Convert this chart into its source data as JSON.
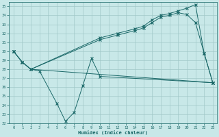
{
  "bg_color": "#c8e8e8",
  "grid_color": "#a0c8c8",
  "line_color": "#1a6868",
  "xlabel": "Humidex (Indice chaleur)",
  "xlim": [
    -0.5,
    23.5
  ],
  "ylim": [
    22,
    35.5
  ],
  "yticks": [
    22,
    23,
    24,
    25,
    26,
    27,
    28,
    29,
    30,
    31,
    32,
    33,
    34,
    35
  ],
  "xticks": [
    0,
    1,
    2,
    3,
    4,
    5,
    6,
    7,
    8,
    9,
    10,
    11,
    12,
    13,
    14,
    15,
    16,
    17,
    18,
    19,
    20,
    21,
    22,
    23
  ],
  "line1_x": [
    0,
    1,
    2,
    10,
    12,
    14,
    15,
    16,
    17,
    18,
    19,
    20,
    21,
    22,
    23
  ],
  "line1_y": [
    30,
    28.8,
    28.0,
    31.5,
    32.0,
    32.5,
    32.8,
    33.5,
    34.0,
    34.2,
    34.5,
    34.8,
    35.2,
    29.8,
    26.5
  ],
  "line2_x": [
    0,
    1,
    2,
    10,
    12,
    14,
    15,
    16,
    17,
    18,
    19,
    20,
    21,
    22,
    23
  ],
  "line2_y": [
    30,
    28.8,
    28.0,
    31.3,
    31.8,
    32.3,
    32.6,
    33.2,
    33.8,
    34.0,
    34.3,
    34.1,
    33.2,
    29.8,
    26.5
  ],
  "line3_x": [
    0,
    1,
    2,
    3,
    5,
    6,
    7,
    8,
    9,
    10,
    23
  ],
  "line3_y": [
    30,
    28.8,
    28.0,
    27.8,
    24.2,
    22.2,
    23.2,
    26.2,
    29.2,
    27.2,
    26.5
  ],
  "line4_x": [
    2,
    23
  ],
  "line4_y": [
    28.0,
    26.5
  ],
  "marker1_x": [
    0,
    1,
    2,
    10,
    12,
    14,
    15,
    16,
    17,
    18,
    19,
    20,
    21,
    22,
    23
  ],
  "marker1_y": [
    30,
    28.8,
    28.0,
    31.5,
    32.0,
    32.5,
    32.8,
    33.5,
    34.0,
    34.2,
    34.5,
    34.8,
    35.2,
    29.8,
    26.5
  ],
  "marker2_x": [
    0,
    1,
    2,
    10,
    12,
    14,
    15,
    16,
    17,
    18,
    19,
    20,
    21,
    22,
    23
  ],
  "marker2_y": [
    30,
    28.8,
    28.0,
    31.3,
    31.8,
    32.3,
    32.6,
    33.2,
    33.8,
    34.0,
    34.3,
    34.1,
    33.2,
    29.8,
    26.5
  ],
  "marker3_x": [
    0,
    1,
    2,
    3,
    5,
    6,
    7,
    8,
    9,
    10,
    23
  ],
  "marker3_y": [
    30,
    28.8,
    28.0,
    27.8,
    24.2,
    22.2,
    23.2,
    26.2,
    29.2,
    27.2,
    26.5
  ]
}
